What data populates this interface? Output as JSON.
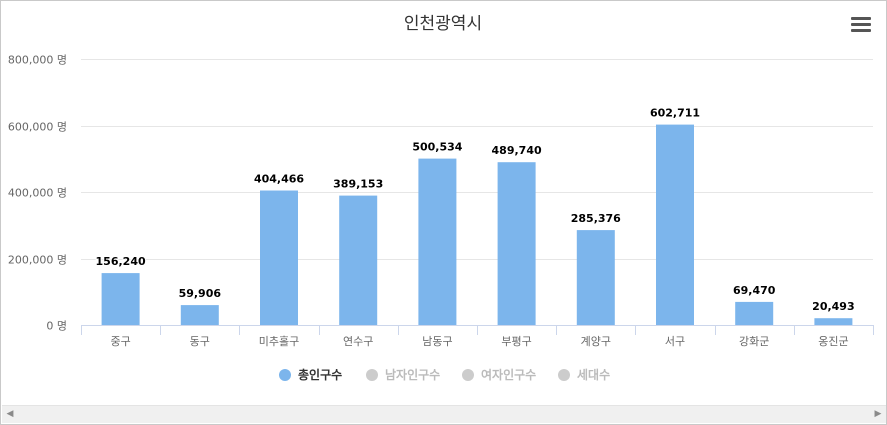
{
  "chart_data": {
    "type": "bar",
    "title": "인천광역시",
    "categories": [
      "중구",
      "동구",
      "미추홀구",
      "연수구",
      "남동구",
      "부평구",
      "계양구",
      "서구",
      "강화군",
      "옹진군"
    ],
    "series": [
      {
        "name": "총인구수",
        "values": [
          156240,
          59906,
          404466,
          389153,
          500534,
          489740,
          285376,
          602711,
          69470,
          20493
        ],
        "data_labels": [
          "156,240",
          "59,906",
          "404,466",
          "389,153",
          "500,534",
          "489,740",
          "285,376",
          "602,711",
          "69,470",
          "20,493"
        ],
        "color": "#7cb5ec",
        "visible": true
      },
      {
        "name": "남자인구수",
        "visible": false
      },
      {
        "name": "여자인구수",
        "visible": false
      },
      {
        "name": "세대수",
        "visible": false
      }
    ],
    "ylim": [
      0,
      800000
    ],
    "yticks": [
      0,
      200000,
      400000,
      600000,
      800000
    ],
    "ytick_labels": [
      "0 명",
      "200,000 명",
      "400,000 명",
      "600,000 명",
      "800,000 명"
    ],
    "grid": true,
    "legend_position": "bottom-center"
  },
  "colors": {
    "bar": "#7cb5ec",
    "legend_hidden": "#cccccc",
    "legend_active_text": "#333333",
    "legend_hidden_text": "#bbbbbb",
    "grid": "#e6e6e6",
    "axis": "#ccd6eb"
  },
  "icons": {
    "menu": "hamburger-menu-icon",
    "scroll_left": "triangle-left-icon",
    "scroll_right": "triangle-right-icon"
  },
  "scrollbar": {
    "left_arrow": "◀",
    "right_arrow": "▶"
  }
}
